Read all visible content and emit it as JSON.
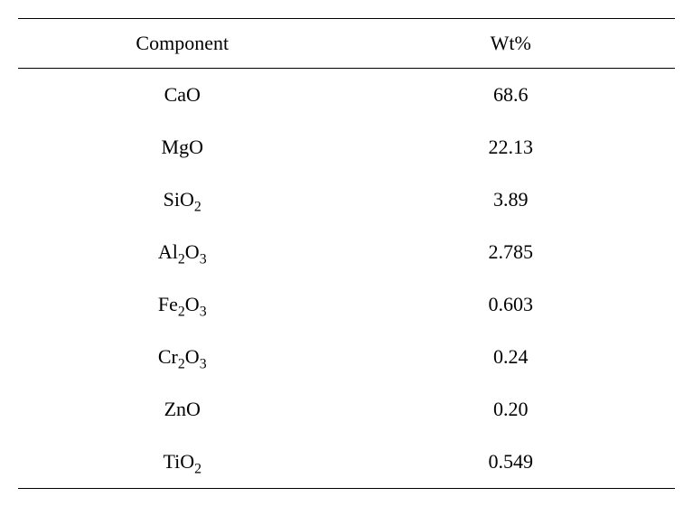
{
  "table": {
    "type": "table",
    "columns": [
      "Component",
      "Wt%"
    ],
    "column_widths": [
      "50%",
      "50%"
    ],
    "header_fontsize": 22,
    "cell_fontsize": 22,
    "text_color": "#000000",
    "background_color": "#ffffff",
    "border_color": "#000000",
    "rows": [
      {
        "component_html": "CaO",
        "wt": "68.6"
      },
      {
        "component_html": "MgO",
        "wt": "22.13"
      },
      {
        "component_html": "SiO<span class=\"sub\">2</span>",
        "wt": "3.89"
      },
      {
        "component_html": "Al<span class=\"sub\">2</span>O<span class=\"sub\">3</span>",
        "wt": "2.785"
      },
      {
        "component_html": "Fe<span class=\"sub\">2</span>O<span class=\"sub\">3</span>",
        "wt": "0.603"
      },
      {
        "component_html": "Cr<span class=\"sub\">2</span>O<span class=\"sub\">3</span>",
        "wt": "0.24"
      },
      {
        "component_html": "ZnO",
        "wt": "0.20"
      },
      {
        "component_html": "TiO<span class=\"sub\">2</span>",
        "wt": "0.549"
      }
    ]
  }
}
